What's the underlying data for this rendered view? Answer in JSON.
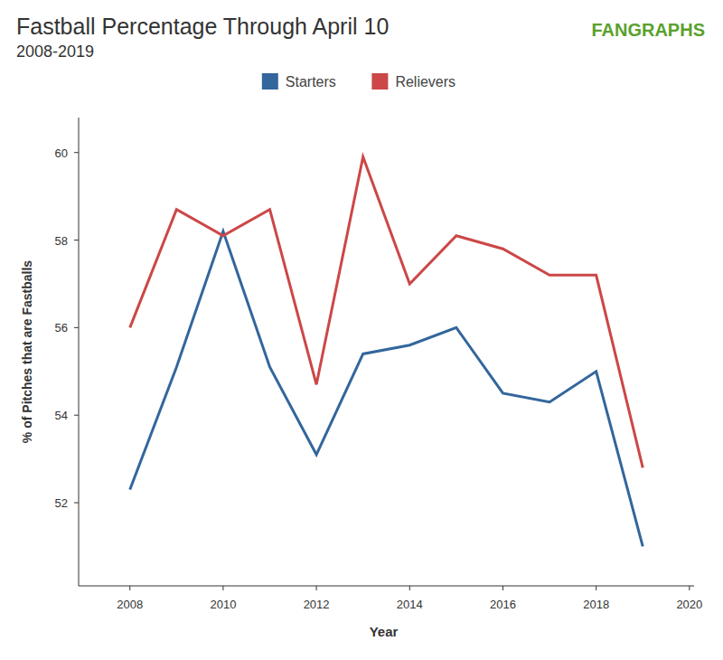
{
  "chart_data": {
    "type": "line",
    "title": "Fastball Percentage Through April 10",
    "subtitle": "2008-2019",
    "annotations": [
      "FANGRAPHS"
    ],
    "x_label": "Year",
    "y_label": "% of Pitches that are Fastballs",
    "x": [
      2008,
      2009,
      2010,
      2011,
      2012,
      2013,
      2014,
      2015,
      2016,
      2017,
      2018,
      2019
    ],
    "series": [
      {
        "name": "Starters",
        "color": "#33669c",
        "values": [
          52.3,
          55.1,
          58.2,
          55.1,
          53.1,
          55.4,
          55.6,
          56.0,
          54.5,
          54.3,
          55.0,
          51.0
        ]
      },
      {
        "name": "Relievers",
        "color": "#cc4747",
        "values": [
          56.0,
          58.7,
          58.1,
          58.7,
          54.7,
          59.9,
          57.0,
          58.1,
          57.8,
          57.2,
          57.2,
          52.8
        ]
      }
    ],
    "xlim": [
      2006.9,
      2020.1
    ],
    "xticks": [
      2008,
      2010,
      2012,
      2014,
      2016,
      2018,
      2020
    ],
    "ylim": [
      50.1,
      60.8
    ],
    "yticks": [
      52,
      54,
      56,
      58,
      60
    ],
    "grid": false,
    "legend": "top"
  }
}
